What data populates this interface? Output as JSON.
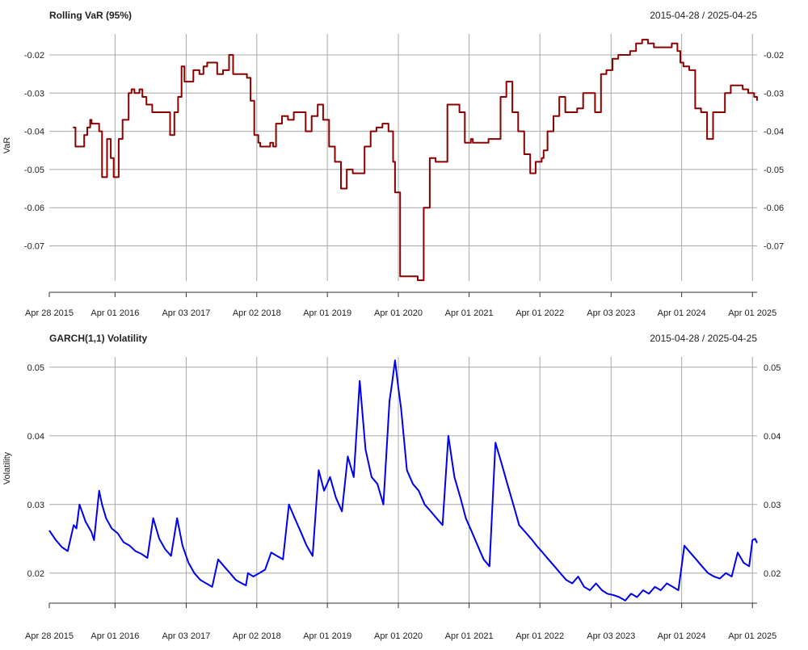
{
  "chart_data": [
    {
      "type": "line",
      "title": "Rolling VaR (95%)",
      "date_range": "2015-04-28 / 2025-04-25",
      "ylabel": "VaR",
      "color": "#8B0000",
      "x_range": [
        "2015-04-28",
        "2025-04-25"
      ],
      "ylim": [
        -0.0792,
        -0.0145
      ],
      "grid": true,
      "x_ticks": [
        {
          "date": "2015-04-28",
          "label": "Apr 28 2015"
        },
        {
          "date": "2016-04-01",
          "label": "Apr 01 2016"
        },
        {
          "date": "2017-04-03",
          "label": "Apr 03 2017"
        },
        {
          "date": "2018-04-02",
          "label": "Apr 02 2018"
        },
        {
          "date": "2019-04-01",
          "label": "Apr 01 2019"
        },
        {
          "date": "2020-04-01",
          "label": "Apr 01 2020"
        },
        {
          "date": "2021-04-01",
          "label": "Apr 01 2021"
        },
        {
          "date": "2022-04-01",
          "label": "Apr 01 2022"
        },
        {
          "date": "2023-04-03",
          "label": "Apr 03 2023"
        },
        {
          "date": "2024-04-01",
          "label": "Apr 01 2024"
        },
        {
          "date": "2025-04-01",
          "label": "Apr 01 2025"
        }
      ],
      "y_ticks": [
        -0.07,
        -0.06,
        -0.05,
        -0.04,
        -0.03,
        -0.02
      ],
      "y_tick_labels": [
        "-0.07",
        "-0.06",
        "-0.05",
        "-0.04",
        "-0.03",
        "-0.02"
      ],
      "series": [
        {
          "x": [
            "2015-08-28",
            "2015-09-10",
            "2015-10-25",
            "2015-11-05",
            "2015-11-10",
            "2015-11-25",
            "2015-12-02",
            "2016-01-10",
            "2016-01-25",
            "2016-02-20",
            "2016-03-10",
            "2016-03-25",
            "2016-04-10",
            "2016-04-20",
            "2016-05-10",
            "2016-06-10",
            "2016-06-25",
            "2016-07-10",
            "2016-08-05",
            "2016-08-20",
            "2016-09-10",
            "2016-10-10",
            "2016-10-25",
            "2016-11-10",
            "2017-01-10",
            "2017-02-01",
            "2017-02-20",
            "2017-03-10",
            "2017-03-25",
            "2017-04-10",
            "2017-05-10",
            "2017-06-10",
            "2017-07-01",
            "2017-07-20",
            "2017-08-10",
            "2017-09-10",
            "2017-10-10",
            "2017-11-10",
            "2017-12-01",
            "2017-12-20",
            "2018-01-10",
            "2018-02-10",
            "2018-03-01",
            "2018-03-20",
            "2018-04-10",
            "2018-04-20",
            "2018-06-10",
            "2018-06-25",
            "2018-07-10",
            "2018-07-25",
            "2018-08-10",
            "2018-09-10",
            "2018-10-10",
            "2018-11-10",
            "2018-12-10",
            "2019-01-10",
            "2019-02-10",
            "2019-03-10",
            "2019-04-10",
            "2019-05-10",
            "2019-06-10",
            "2019-07-10",
            "2019-08-10",
            "2019-09-10",
            "2019-10-10",
            "2019-11-10",
            "2019-12-10",
            "2020-01-10",
            "2020-02-10",
            "2020-03-05",
            "2020-03-15",
            "2020-04-10",
            "2020-07-10",
            "2020-08-10",
            "2020-09-10",
            "2020-10-10",
            "2020-11-10",
            "2020-12-10",
            "2021-01-10",
            "2021-02-10",
            "2021-03-10",
            "2021-04-10",
            "2021-04-20",
            "2021-06-10",
            "2021-07-10",
            "2021-09-10",
            "2021-10-10",
            "2021-11-10",
            "2021-12-10",
            "2022-01-10",
            "2022-02-10",
            "2022-03-10",
            "2022-04-10",
            "2022-04-20",
            "2022-05-10",
            "2022-06-10",
            "2022-07-10",
            "2022-08-10",
            "2022-09-10",
            "2022-10-10",
            "2022-11-10",
            "2022-12-10",
            "2023-01-10",
            "2023-02-10",
            "2023-03-10",
            "2023-04-10",
            "2023-05-10",
            "2023-06-10",
            "2023-07-10",
            "2023-08-10",
            "2023-09-10",
            "2023-10-10",
            "2023-11-10",
            "2023-12-10",
            "2024-01-10",
            "2024-02-10",
            "2024-03-10",
            "2024-03-25",
            "2024-04-10",
            "2024-05-10",
            "2024-06-10",
            "2024-07-10",
            "2024-08-10",
            "2024-09-10",
            "2024-10-10",
            "2024-11-10",
            "2024-12-10",
            "2025-01-10",
            "2025-02-10",
            "2025-03-10",
            "2025-04-10",
            "2025-04-25"
          ],
          "y": [
            -0.039,
            -0.044,
            -0.041,
            -0.041,
            -0.039,
            -0.037,
            -0.038,
            -0.04,
            -0.052,
            -0.042,
            -0.047,
            -0.052,
            -0.052,
            -0.042,
            -0.037,
            -0.03,
            -0.029,
            -0.03,
            -0.029,
            -0.031,
            -0.033,
            -0.035,
            -0.035,
            -0.035,
            -0.041,
            -0.035,
            -0.031,
            -0.023,
            -0.027,
            -0.027,
            -0.024,
            -0.025,
            -0.023,
            -0.022,
            -0.022,
            -0.025,
            -0.024,
            -0.02,
            -0.025,
            -0.025,
            -0.025,
            -0.026,
            -0.032,
            -0.041,
            -0.043,
            -0.044,
            -0.043,
            -0.044,
            -0.038,
            -0.038,
            -0.036,
            -0.037,
            -0.035,
            -0.035,
            -0.04,
            -0.036,
            -0.033,
            -0.037,
            -0.044,
            -0.048,
            -0.055,
            -0.05,
            -0.051,
            -0.051,
            -0.044,
            -0.04,
            -0.039,
            -0.038,
            -0.04,
            -0.048,
            -0.056,
            -0.078,
            -0.079,
            -0.06,
            -0.047,
            -0.048,
            -0.048,
            -0.033,
            -0.033,
            -0.035,
            -0.043,
            -0.042,
            -0.043,
            -0.043,
            -0.042,
            -0.031,
            -0.027,
            -0.035,
            -0.04,
            -0.046,
            -0.051,
            -0.048,
            -0.047,
            -0.045,
            -0.04,
            -0.036,
            -0.031,
            -0.035,
            -0.035,
            -0.034,
            -0.03,
            -0.03,
            -0.035,
            -0.025,
            -0.024,
            -0.021,
            -0.02,
            -0.02,
            -0.019,
            -0.017,
            -0.016,
            -0.017,
            -0.018,
            -0.018,
            -0.018,
            -0.017,
            -0.019,
            -0.022,
            -0.023,
            -0.024,
            -0.034,
            -0.035,
            -0.042,
            -0.035,
            -0.035,
            -0.03,
            -0.028,
            -0.028,
            -0.029,
            -0.03,
            -0.031,
            -0.032
          ]
        }
      ]
    },
    {
      "type": "line",
      "title": "GARCH(1,1) Volatility",
      "date_range": "2015-04-28 / 2025-04-25",
      "ylabel": "Volatility",
      "color": "#0000EE",
      "x_range": [
        "2015-04-28",
        "2025-04-25"
      ],
      "ylim": [
        0.0155,
        0.0515
      ],
      "grid": true,
      "x_ticks": [
        {
          "date": "2015-04-28",
          "label": "Apr 28 2015"
        },
        {
          "date": "2016-04-01",
          "label": "Apr 01 2016"
        },
        {
          "date": "2017-04-03",
          "label": "Apr 03 2017"
        },
        {
          "date": "2018-04-02",
          "label": "Apr 02 2018"
        },
        {
          "date": "2019-04-01",
          "label": "Apr 01 2019"
        },
        {
          "date": "2020-04-01",
          "label": "Apr 01 2020"
        },
        {
          "date": "2021-04-01",
          "label": "Apr 01 2021"
        },
        {
          "date": "2022-04-01",
          "label": "Apr 01 2022"
        },
        {
          "date": "2023-04-03",
          "label": "Apr 03 2023"
        },
        {
          "date": "2024-04-01",
          "label": "Apr 01 2024"
        },
        {
          "date": "2025-04-01",
          "label": "Apr 01 2025"
        }
      ],
      "y_ticks": [
        0.02,
        0.03,
        0.04,
        0.05
      ],
      "y_tick_labels": [
        "0.02",
        "0.03",
        "0.04",
        "0.05"
      ],
      "series": [
        {
          "x": [
            "2015-04-28",
            "2015-06-01",
            "2015-07-01",
            "2015-08-01",
            "2015-09-01",
            "2015-09-15",
            "2015-10-01",
            "2015-11-01",
            "2015-12-01",
            "2015-12-15",
            "2016-01-10",
            "2016-01-25",
            "2016-02-15",
            "2016-03-15",
            "2016-04-15",
            "2016-05-15",
            "2016-06-15",
            "2016-07-15",
            "2016-08-15",
            "2016-09-15",
            "2016-10-15",
            "2016-11-15",
            "2016-12-15",
            "2017-01-15",
            "2017-02-15",
            "2017-03-15",
            "2017-04-15",
            "2017-05-15",
            "2017-06-15",
            "2017-07-15",
            "2017-08-15",
            "2017-09-15",
            "2017-10-15",
            "2017-11-15",
            "2017-12-15",
            "2018-01-15",
            "2018-02-05",
            "2018-02-15",
            "2018-03-15",
            "2018-04-15",
            "2018-05-15",
            "2018-06-15",
            "2018-07-15",
            "2018-08-15",
            "2018-09-15",
            "2018-10-15",
            "2018-11-15",
            "2018-12-15",
            "2019-01-15",
            "2019-02-15",
            "2019-03-15",
            "2019-04-15",
            "2019-05-15",
            "2019-06-15",
            "2019-07-15",
            "2019-08-15",
            "2019-09-15",
            "2019-10-15",
            "2019-11-15",
            "2019-12-15",
            "2020-01-15",
            "2020-02-15",
            "2020-03-01",
            "2020-03-15",
            "2020-04-01",
            "2020-04-15",
            "2020-05-15",
            "2020-06-15",
            "2020-07-15",
            "2020-08-15",
            "2020-09-15",
            "2020-10-15",
            "2020-11-15",
            "2020-12-15",
            "2021-01-15",
            "2021-02-15",
            "2021-03-15",
            "2021-04-15",
            "2021-05-15",
            "2021-06-15",
            "2021-07-15",
            "2021-08-15",
            "2021-09-15",
            "2021-10-15",
            "2021-11-15",
            "2021-12-15",
            "2022-01-15",
            "2022-02-15",
            "2022-03-15",
            "2022-04-15",
            "2022-05-15",
            "2022-06-15",
            "2022-07-15",
            "2022-08-15",
            "2022-09-15",
            "2022-10-15",
            "2022-11-15",
            "2022-12-15",
            "2023-01-15",
            "2023-02-15",
            "2023-03-15",
            "2023-04-15",
            "2023-05-15",
            "2023-06-15",
            "2023-07-15",
            "2023-08-15",
            "2023-09-15",
            "2023-10-15",
            "2023-11-15",
            "2023-12-15",
            "2024-01-15",
            "2024-02-15",
            "2024-03-15",
            "2024-04-15",
            "2024-05-15",
            "2024-06-15",
            "2024-07-15",
            "2024-08-15",
            "2024-09-15",
            "2024-10-15",
            "2024-11-15",
            "2024-12-15",
            "2025-01-15",
            "2025-02-15",
            "2025-03-15",
            "2025-04-01",
            "2025-04-15",
            "2025-04-25"
          ],
          "y": [
            0.0262,
            0.0248,
            0.0238,
            0.0232,
            0.027,
            0.0265,
            0.03,
            0.0275,
            0.026,
            0.0248,
            0.032,
            0.03,
            0.028,
            0.0265,
            0.0258,
            0.0245,
            0.024,
            0.0232,
            0.0228,
            0.0222,
            0.028,
            0.025,
            0.0235,
            0.0225,
            0.028,
            0.024,
            0.0215,
            0.02,
            0.019,
            0.0185,
            0.018,
            0.022,
            0.021,
            0.02,
            0.019,
            0.0185,
            0.0182,
            0.02,
            0.0195,
            0.02,
            0.0205,
            0.023,
            0.0225,
            0.022,
            0.03,
            0.028,
            0.026,
            0.024,
            0.0225,
            0.035,
            0.032,
            0.034,
            0.031,
            0.029,
            0.037,
            0.034,
            0.048,
            0.038,
            0.034,
            0.033,
            0.03,
            0.045,
            0.048,
            0.051,
            0.047,
            0.044,
            0.035,
            0.033,
            0.032,
            0.03,
            0.029,
            0.028,
            0.027,
            0.04,
            0.034,
            0.031,
            0.028,
            0.026,
            0.024,
            0.022,
            0.021,
            0.039,
            0.036,
            0.033,
            0.03,
            0.027,
            0.026,
            0.025,
            0.024,
            0.023,
            0.022,
            0.021,
            0.02,
            0.019,
            0.0185,
            0.0195,
            0.018,
            0.0175,
            0.0185,
            0.0175,
            0.017,
            0.0168,
            0.0165,
            0.016,
            0.017,
            0.0165,
            0.0175,
            0.017,
            0.018,
            0.0175,
            0.0185,
            0.018,
            0.0175,
            0.024,
            0.023,
            0.022,
            0.021,
            0.02,
            0.0195,
            0.0192,
            0.02,
            0.0195,
            0.023,
            0.0215,
            0.021,
            0.0248,
            0.025,
            0.0244
          ]
        }
      ]
    }
  ]
}
